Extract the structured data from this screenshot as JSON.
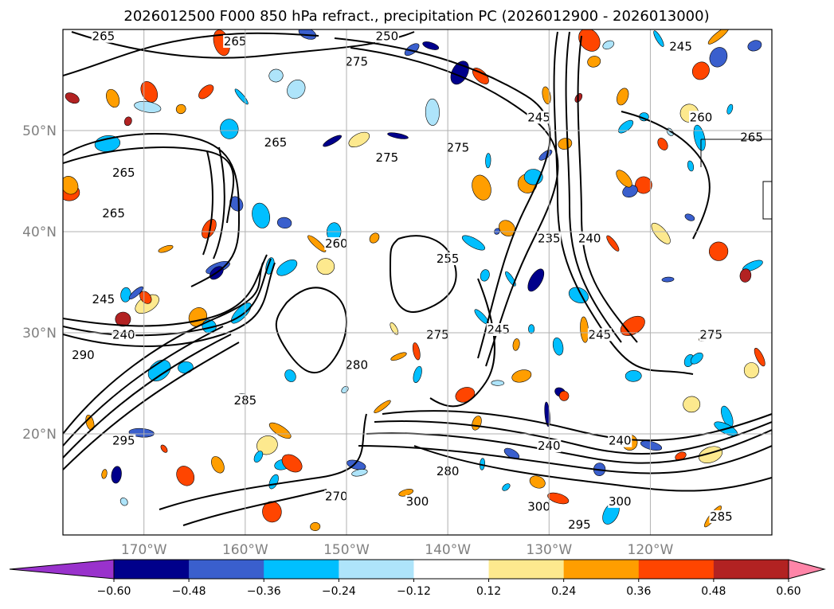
{
  "chart_data": {
    "type": "heatmap",
    "title": "2026012500 F000 850 hPa refract., precipitation PC (2026012900 - 2026013000)",
    "x_ticks": [
      "170°W",
      "160°W",
      "150°W",
      "140°W",
      "130°W",
      "120°W"
    ],
    "y_ticks": [
      "50°N",
      "40°N",
      "30°N",
      "20°N"
    ],
    "lon_range": [
      -178,
      -108
    ],
    "lat_range": [
      10,
      60
    ],
    "gridlines": true,
    "colorbar": {
      "levels": [
        "-0.60",
        "-0.48",
        "-0.36",
        "-0.24",
        "-0.12",
        "0.12",
        "0.24",
        "0.36",
        "0.48",
        "0.60"
      ],
      "colors": [
        "#9932cc",
        "#00008b",
        "#3a5fcd",
        "#00bfff",
        "#aee4fa",
        "#ffffff",
        "#fde98e",
        "#ff9e00",
        "#ff4500",
        "#b22222",
        "#ff85a8"
      ],
      "extend": "both"
    },
    "contour_labels": [
      {
        "text": "265",
        "lon": -174,
        "lat": 59
      },
      {
        "text": "250",
        "lon": -146,
        "lat": 59
      },
      {
        "text": "275",
        "lon": -149,
        "lat": 56.5
      },
      {
        "text": "265",
        "lon": -161,
        "lat": 58.5
      },
      {
        "text": "245",
        "lon": -117,
        "lat": 58
      },
      {
        "text": "265",
        "lon": -157,
        "lat": 48.5
      },
      {
        "text": "275",
        "lon": -146,
        "lat": 47
      },
      {
        "text": "275",
        "lon": -139,
        "lat": 48
      },
      {
        "text": "265",
        "lon": -172,
        "lat": 45.5
      },
      {
        "text": "265",
        "lon": -173,
        "lat": 41.5
      },
      {
        "text": "260",
        "lon": -115,
        "lat": 51
      },
      {
        "text": "265",
        "lon": -110,
        "lat": 49
      },
      {
        "text": "245",
        "lon": -131,
        "lat": 51
      },
      {
        "text": "235",
        "lon": -130,
        "lat": 39
      },
      {
        "text": "255",
        "lon": -140,
        "lat": 37
      },
      {
        "text": "240",
        "lon": -126,
        "lat": 39
      },
      {
        "text": "260",
        "lon": -151,
        "lat": 38.5
      },
      {
        "text": "245",
        "lon": -174,
        "lat": 33
      },
      {
        "text": "240",
        "lon": -172,
        "lat": 29.5
      },
      {
        "text": "290",
        "lon": -176,
        "lat": 27.5
      },
      {
        "text": "245",
        "lon": -135,
        "lat": 30
      },
      {
        "text": "245",
        "lon": -125,
        "lat": 29.5
      },
      {
        "text": "275",
        "lon": -141,
        "lat": 29.5
      },
      {
        "text": "280",
        "lon": -149,
        "lat": 26.5
      },
      {
        "text": "285",
        "lon": -160,
        "lat": 23
      },
      {
        "text": "295",
        "lon": -172,
        "lat": 19
      },
      {
        "text": "240",
        "lon": -130,
        "lat": 18.5
      },
      {
        "text": "240",
        "lon": -123,
        "lat": 19
      },
      {
        "text": "280",
        "lon": -140,
        "lat": 16
      },
      {
        "text": "300",
        "lon": -143,
        "lat": 13
      },
      {
        "text": "300",
        "lon": -131,
        "lat": 12.5
      },
      {
        "text": "300",
        "lon": -123,
        "lat": 13
      },
      {
        "text": "295",
        "lon": -127,
        "lat": 10.7
      },
      {
        "text": "285",
        "lon": -113,
        "lat": 11.5
      },
      {
        "text": "270",
        "lon": -151,
        "lat": 13.5
      },
      {
        "text": "275",
        "lon": -114,
        "lat": 29.5
      }
    ]
  }
}
